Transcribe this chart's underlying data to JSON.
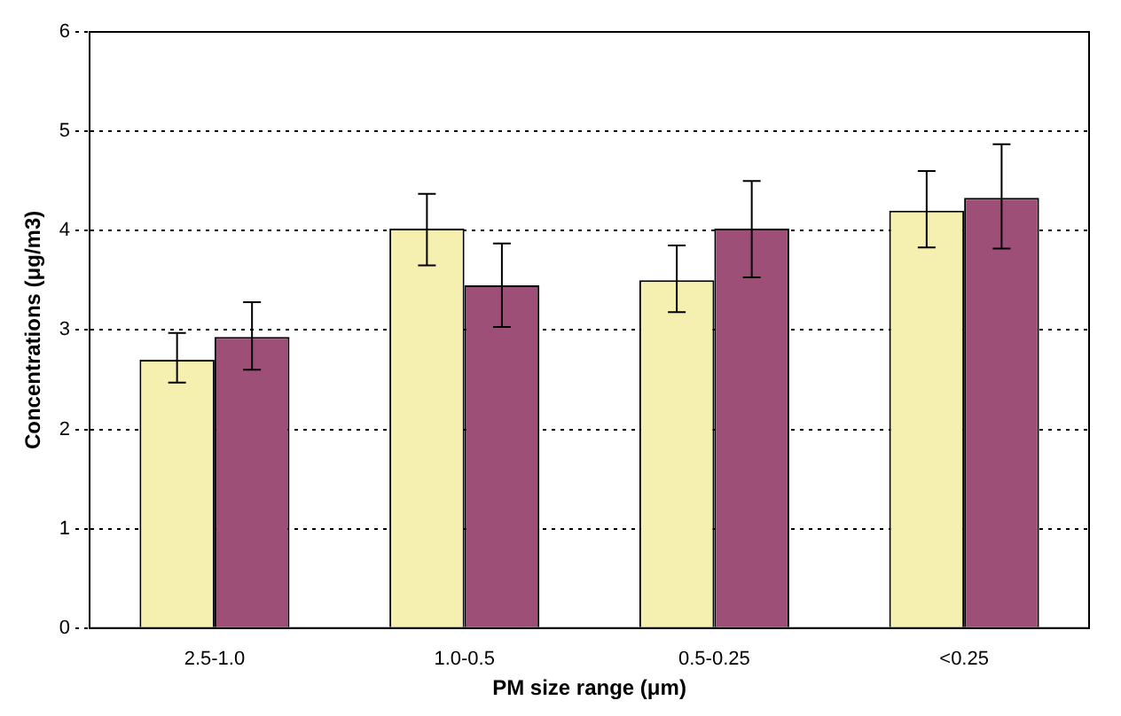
{
  "chart_data": {
    "type": "bar",
    "xlabel": "PM size range (μm)",
    "ylabel": "Concentrations (μg/m3)",
    "categories": [
      "2.5-1.0",
      "1.0-0.5",
      "0.5-0.25",
      "<0.25"
    ],
    "series": [
      {
        "color": "#f5f0b0",
        "values": [
          2.7,
          4.02,
          3.5,
          4.2
        ],
        "errors": [
          [
            2.47,
            2.97
          ],
          [
            3.65,
            4.37
          ],
          [
            3.18,
            3.85
          ],
          [
            3.83,
            4.6
          ]
        ]
      },
      {
        "color": "#9e4f78",
        "values": [
          2.93,
          3.45,
          4.02,
          4.33
        ],
        "errors": [
          [
            2.6,
            3.28
          ],
          [
            3.03,
            3.87
          ],
          [
            3.53,
            4.5
          ],
          [
            3.82,
            4.87
          ]
        ]
      }
    ],
    "ylim": [
      0,
      6
    ],
    "yticks": [
      0,
      1,
      2,
      3,
      4,
      5,
      6
    ],
    "grid": "y",
    "legend": false
  }
}
